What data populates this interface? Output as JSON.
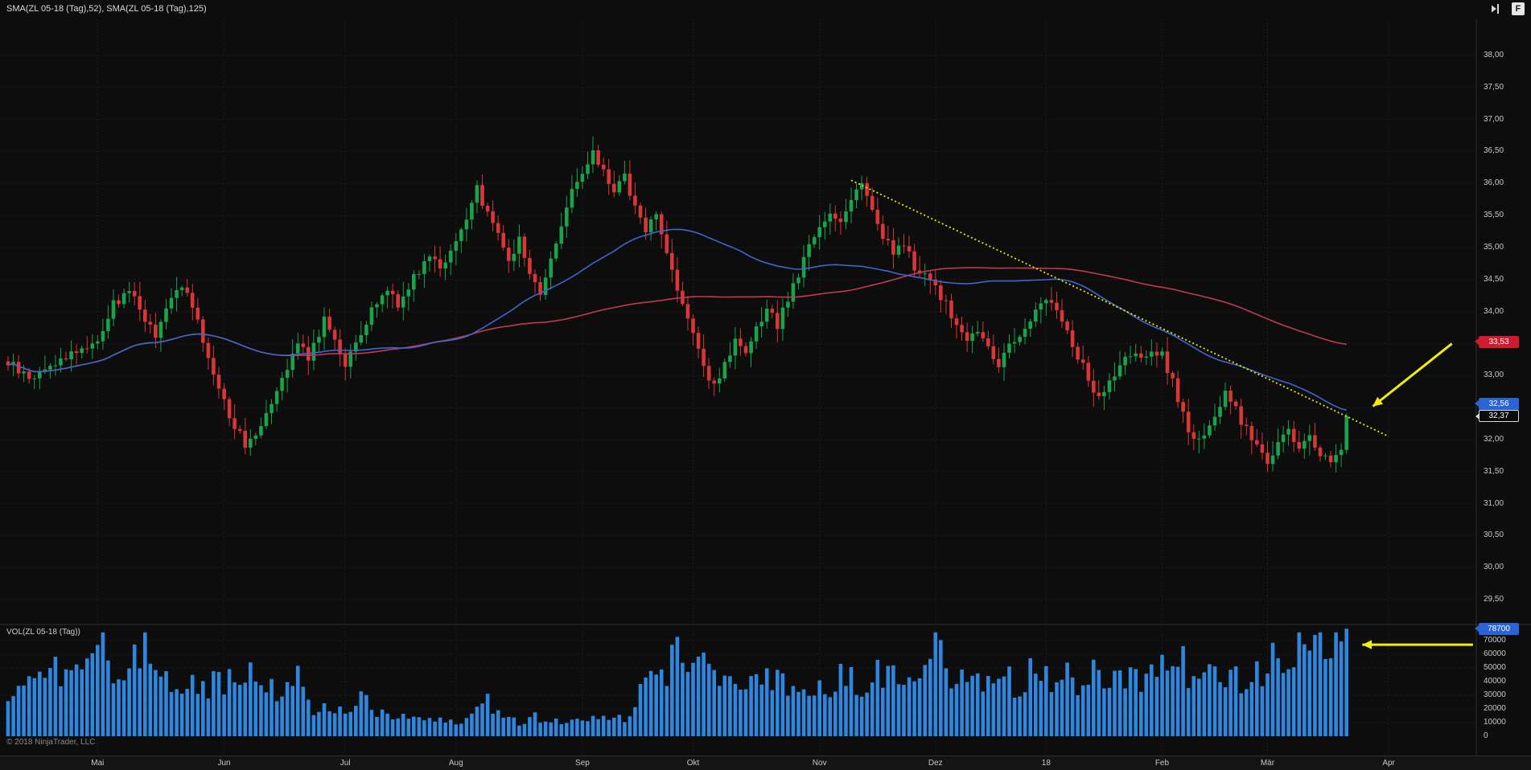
{
  "header": {
    "indicator_label": "SMA(ZL 05-18 (Tag),52), SMA(ZL 05-18 (Tag),125)",
    "window_button": "F"
  },
  "volume_panel": {
    "label": "VOL(ZL 05-18 (Tag))"
  },
  "footer": {
    "copyright": "© 2018 NinjaTrader, LLC"
  },
  "axis": {
    "price_labels": [
      {
        "text": "38,00",
        "value": 38.0
      },
      {
        "text": "37,50",
        "value": 37.5
      },
      {
        "text": "37,00",
        "value": 37.0
      },
      {
        "text": "36,50",
        "value": 36.5
      },
      {
        "text": "36,00",
        "value": 36.0
      },
      {
        "text": "35,50",
        "value": 35.5
      },
      {
        "text": "35,00",
        "value": 35.0
      },
      {
        "text": "34,50",
        "value": 34.5
      },
      {
        "text": "34,00",
        "value": 34.0
      },
      {
        "text": "33,00",
        "value": 33.0
      },
      {
        "text": "32,00",
        "value": 32.0
      },
      {
        "text": "31,50",
        "value": 31.5
      },
      {
        "text": "31,00",
        "value": 31.0
      },
      {
        "text": "30,50",
        "value": 30.5
      },
      {
        "text": "30,00",
        "value": 30.0
      },
      {
        "text": "29,50",
        "value": 29.5
      }
    ],
    "volume_labels": [
      {
        "text": "70000",
        "value": 70000
      },
      {
        "text": "60000",
        "value": 60000
      },
      {
        "text": "50000",
        "value": 50000
      },
      {
        "text": "40000",
        "value": 40000
      },
      {
        "text": "30000",
        "value": 30000
      },
      {
        "text": "20000",
        "value": 20000
      },
      {
        "text": "10000",
        "value": 10000
      },
      {
        "text": "0",
        "value": 0
      }
    ],
    "months": [
      {
        "label": "Mai",
        "bar": 17
      },
      {
        "label": "Jun",
        "bar": 41
      },
      {
        "label": "Jul",
        "bar": 64
      },
      {
        "label": "Aug",
        "bar": 85
      },
      {
        "label": "Sep",
        "bar": 109
      },
      {
        "label": "Okt",
        "bar": 130
      },
      {
        "label": "Nov",
        "bar": 154
      },
      {
        "label": "Dez",
        "bar": 176
      },
      {
        "label": "18",
        "bar": 197
      },
      {
        "label": "Feb",
        "bar": 219
      },
      {
        "label": "Mär",
        "bar": 239
      },
      {
        "label": "Apr",
        "bar": 262
      }
    ]
  },
  "badges": {
    "sma125": {
      "text": "33,53",
      "price": 33.53,
      "color": "#d11a2e"
    },
    "sma52": {
      "text": "32,56",
      "price": 32.56,
      "color": "#2a63d4"
    },
    "last": {
      "text": "32,37",
      "price": 32.37,
      "color": "#0b0b0b",
      "border": "#d9d9d9"
    },
    "volume": {
      "text": "78700",
      "value": 78700,
      "color": "#2a63d4"
    }
  },
  "chart_data": {
    "type": "candlestick+volume",
    "instrument": "ZL 05-18 (Tag)",
    "bars": 255,
    "last_close": 32.37,
    "last_volume": 78700,
    "price_axis": {
      "min": 29.5,
      "max": 38.0,
      "step": 0.5
    },
    "volume_axis": {
      "min": 0,
      "max": 78700,
      "step": 10000
    },
    "sma": [
      {
        "period": 52,
        "color": "#3f66cc",
        "last": 32.56
      },
      {
        "period": 125,
        "color": "#c03a52",
        "last": 33.53
      }
    ],
    "price_anchors": [
      [
        0,
        33.2
      ],
      [
        4,
        32.95
      ],
      [
        8,
        33.15
      ],
      [
        12,
        33.35
      ],
      [
        17,
        33.55
      ],
      [
        20,
        34.1
      ],
      [
        23,
        34.35
      ],
      [
        26,
        33.9
      ],
      [
        28,
        33.6
      ],
      [
        31,
        34.2
      ],
      [
        33,
        34.45
      ],
      [
        36,
        33.8
      ],
      [
        38,
        33.3
      ],
      [
        41,
        32.6
      ],
      [
        43,
        32.2
      ],
      [
        45,
        31.95
      ],
      [
        47,
        32.1
      ],
      [
        49,
        32.45
      ],
      [
        52,
        33.0
      ],
      [
        55,
        33.5
      ],
      [
        57,
        33.3
      ],
      [
        60,
        33.85
      ],
      [
        62,
        33.6
      ],
      [
        64,
        33.2
      ],
      [
        66,
        33.45
      ],
      [
        69,
        34.0
      ],
      [
        72,
        34.4
      ],
      [
        74,
        34.1
      ],
      [
        77,
        34.55
      ],
      [
        80,
        34.9
      ],
      [
        82,
        34.7
      ],
      [
        85,
        35.1
      ],
      [
        87,
        35.4
      ],
      [
        89,
        35.9
      ],
      [
        91,
        35.55
      ],
      [
        93,
        35.2
      ],
      [
        95,
        34.85
      ],
      [
        97,
        35.1
      ],
      [
        99,
        34.6
      ],
      [
        101,
        34.3
      ],
      [
        103,
        34.8
      ],
      [
        105,
        35.4
      ],
      [
        107,
        35.9
      ],
      [
        109,
        36.1
      ],
      [
        111,
        36.45
      ],
      [
        113,
        36.2
      ],
      [
        115,
        35.9
      ],
      [
        117,
        36.1
      ],
      [
        119,
        35.6
      ],
      [
        121,
        35.3
      ],
      [
        123,
        35.5
      ],
      [
        125,
        34.9
      ],
      [
        127,
        34.4
      ],
      [
        129,
        33.9
      ],
      [
        130,
        33.6
      ],
      [
        132,
        33.1
      ],
      [
        134,
        32.85
      ],
      [
        136,
        33.2
      ],
      [
        138,
        33.5
      ],
      [
        140,
        33.3
      ],
      [
        142,
        33.7
      ],
      [
        144,
        34.0
      ],
      [
        146,
        33.8
      ],
      [
        148,
        34.2
      ],
      [
        150,
        34.6
      ],
      [
        152,
        35.0
      ],
      [
        154,
        35.3
      ],
      [
        156,
        35.55
      ],
      [
        158,
        35.4
      ],
      [
        160,
        35.8
      ],
      [
        162,
        36.0
      ],
      [
        164,
        35.6
      ],
      [
        166,
        35.2
      ],
      [
        168,
        34.9
      ],
      [
        170,
        35.05
      ],
      [
        172,
        34.7
      ],
      [
        174,
        34.55
      ],
      [
        176,
        34.4
      ],
      [
        178,
        34.1
      ],
      [
        180,
        33.8
      ],
      [
        182,
        33.55
      ],
      [
        184,
        33.7
      ],
      [
        186,
        33.4
      ],
      [
        188,
        33.2
      ],
      [
        190,
        33.45
      ],
      [
        192,
        33.6
      ],
      [
        194,
        33.9
      ],
      [
        196,
        34.1
      ],
      [
        197,
        34.25
      ],
      [
        199,
        34.05
      ],
      [
        201,
        33.7
      ],
      [
        203,
        33.3
      ],
      [
        205,
        32.95
      ],
      [
        207,
        32.6
      ],
      [
        209,
        32.85
      ],
      [
        211,
        33.1
      ],
      [
        213,
        33.35
      ],
      [
        215,
        33.2
      ],
      [
        217,
        33.45
      ],
      [
        219,
        33.3
      ],
      [
        221,
        32.9
      ],
      [
        223,
        32.4
      ],
      [
        225,
        31.95
      ],
      [
        227,
        32.1
      ],
      [
        229,
        32.4
      ],
      [
        231,
        32.7
      ],
      [
        233,
        32.45
      ],
      [
        235,
        32.15
      ],
      [
        237,
        31.9
      ],
      [
        239,
        31.7
      ],
      [
        241,
        31.95
      ],
      [
        243,
        32.1
      ],
      [
        245,
        31.85
      ],
      [
        247,
        32.05
      ],
      [
        249,
        31.8
      ],
      [
        251,
        31.65
      ],
      [
        253,
        31.85
      ],
      [
        254,
        32.37
      ]
    ],
    "volume_anchors": [
      [
        0,
        30000
      ],
      [
        5,
        38000
      ],
      [
        10,
        52000
      ],
      [
        14,
        45000
      ],
      [
        18,
        73000
      ],
      [
        22,
        35000
      ],
      [
        26,
        75000
      ],
      [
        30,
        40000
      ],
      [
        34,
        45000
      ],
      [
        38,
        35000
      ],
      [
        41,
        42000
      ],
      [
        45,
        50000
      ],
      [
        48,
        30000
      ],
      [
        52,
        38000
      ],
      [
        55,
        45000
      ],
      [
        58,
        15000
      ],
      [
        61,
        22000
      ],
      [
        64,
        18000
      ],
      [
        67,
        28000
      ],
      [
        70,
        20000
      ],
      [
        73,
        12000
      ],
      [
        76,
        15000
      ],
      [
        79,
        10000
      ],
      [
        82,
        12000
      ],
      [
        85,
        10000
      ],
      [
        88,
        18000
      ],
      [
        91,
        25000
      ],
      [
        94,
        12000
      ],
      [
        97,
        10000
      ],
      [
        100,
        14000
      ],
      [
        103,
        12000
      ],
      [
        106,
        10000
      ],
      [
        109,
        12000
      ],
      [
        112,
        15000
      ],
      [
        115,
        12000
      ],
      [
        118,
        14000
      ],
      [
        120,
        30000
      ],
      [
        123,
        45000
      ],
      [
        126,
        55000
      ],
      [
        129,
        62000
      ],
      [
        132,
        48000
      ],
      [
        135,
        40000
      ],
      [
        138,
        45000
      ],
      [
        141,
        38000
      ],
      [
        144,
        48000
      ],
      [
        147,
        40000
      ],
      [
        150,
        35000
      ],
      [
        153,
        42000
      ],
      [
        156,
        38000
      ],
      [
        159,
        45000
      ],
      [
        162,
        40000
      ],
      [
        165,
        48000
      ],
      [
        168,
        42000
      ],
      [
        171,
        35000
      ],
      [
        174,
        45000
      ],
      [
        176,
        72000
      ],
      [
        179,
        48000
      ],
      [
        182,
        40000
      ],
      [
        185,
        35000
      ],
      [
        188,
        42000
      ],
      [
        191,
        38000
      ],
      [
        194,
        45000
      ],
      [
        197,
        40000
      ],
      [
        200,
        44000
      ],
      [
        203,
        38000
      ],
      [
        206,
        45000
      ],
      [
        209,
        40000
      ],
      [
        212,
        48000
      ],
      [
        215,
        42000
      ],
      [
        218,
        55000
      ],
      [
        221,
        60000
      ],
      [
        224,
        48000
      ],
      [
        227,
        42000
      ],
      [
        230,
        38000
      ],
      [
        233,
        45000
      ],
      [
        236,
        40000
      ],
      [
        239,
        48000
      ],
      [
        241,
        65000
      ],
      [
        243,
        55000
      ],
      [
        245,
        72000
      ],
      [
        247,
        60000
      ],
      [
        249,
        75000
      ],
      [
        251,
        65000
      ],
      [
        253,
        70000
      ],
      [
        254,
        78700
      ]
    ],
    "trendline": {
      "start": {
        "bar": 160,
        "price": 36.05
      },
      "end": {
        "bar": 262,
        "price": 32.05
      },
      "color": "#e8e800",
      "style": "dotted"
    },
    "annotations": [
      {
        "type": "arrow",
        "panel": "price",
        "from": {
          "bar": 274,
          "price": 33.5
        },
        "to": {
          "bar": 259,
          "price": 32.52
        },
        "color": "#f0f000"
      },
      {
        "type": "arrow",
        "panel": "volume",
        "from": {
          "bar": 278,
          "value": 67000
        },
        "to": {
          "bar": 257,
          "value": 67000
        },
        "color": "#f0f000"
      }
    ],
    "colors": {
      "up": "#19a34a",
      "down": "#d93636",
      "volume": "#2e86de",
      "grid": "#262626"
    }
  }
}
